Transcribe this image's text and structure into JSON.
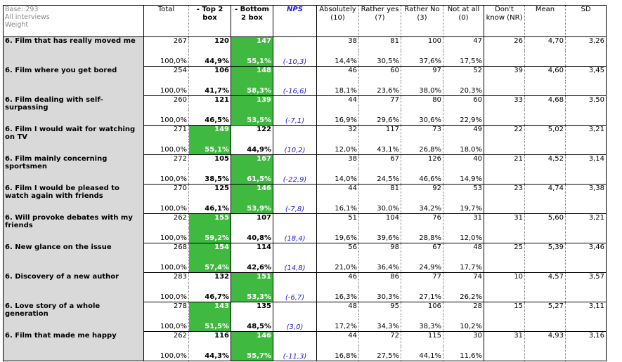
{
  "base_info": [
    "Base: 293",
    "All interviews",
    "Weight"
  ],
  "columns": [
    "Total",
    "- Top 2 box",
    "- Bottom 2 box",
    "NPS",
    "Absolutely (10)",
    "Rather yes (7)",
    "Rather No (3)",
    "Not at all (0)",
    "Don't know (NR)",
    "Mean",
    "SD"
  ],
  "rows": [
    {
      "label": "6. Film that has really moved me",
      "total": "267",
      "top2": "120",
      "bottom2": "147",
      "abs": "38",
      "yes": "81",
      "no": "100",
      "notatall": "47",
      "nr": "26",
      "mean": "4,70",
      "sd": "3,26",
      "total_pct": "100,0%",
      "top2_pct": "44,9%",
      "bottom2_pct": "55,1%",
      "nps": "(-10,3)",
      "abs_pct": "14,4%",
      "yes_pct": "30,5%",
      "no_pct": "37,6%",
      "notatall_pct": "17,5%",
      "green": "bottom"
    },
    {
      "label": "6. Film where you get bored",
      "total": "254",
      "top2": "106",
      "bottom2": "148",
      "abs": "46",
      "yes": "60",
      "no": "97",
      "notatall": "52",
      "nr": "39",
      "mean": "4,60",
      "sd": "3,45",
      "total_pct": "100,0%",
      "top2_pct": "41,7%",
      "bottom2_pct": "58,3%",
      "nps": "(-16,6)",
      "abs_pct": "18,1%",
      "yes_pct": "23,6%",
      "no_pct": "38,0%",
      "notatall_pct": "20,3%",
      "green": "bottom"
    },
    {
      "label": "6. Film dealing with self-surpassing",
      "total": "260",
      "top2": "121",
      "bottom2": "139",
      "abs": "44",
      "yes": "77",
      "no": "80",
      "notatall": "60",
      "nr": "33",
      "mean": "4,68",
      "sd": "3,50",
      "total_pct": "100,0%",
      "top2_pct": "46,5%",
      "bottom2_pct": "53,5%",
      "nps": "(-7,1)",
      "abs_pct": "16,9%",
      "yes_pct": "29,6%",
      "no_pct": "30,6%",
      "notatall_pct": "22,9%",
      "green": "bottom"
    },
    {
      "label": "6. Film I would wait for watching on TV",
      "total": "271",
      "top2": "149",
      "bottom2": "122",
      "abs": "32",
      "yes": "117",
      "no": "73",
      "notatall": "49",
      "nr": "22",
      "mean": "5,02",
      "sd": "3,21",
      "total_pct": "100,0%",
      "top2_pct": "55,1%",
      "bottom2_pct": "44,9%",
      "nps": "(10,2)",
      "abs_pct": "12,0%",
      "yes_pct": "43,1%",
      "no_pct": "26,8%",
      "notatall_pct": "18,0%",
      "green": "top"
    },
    {
      "label": "6. Film mainly concerning sportsmen",
      "total": "272",
      "top2": "105",
      "bottom2": "167",
      "abs": "38",
      "yes": "67",
      "no": "126",
      "notatall": "40",
      "nr": "21",
      "mean": "4,52",
      "sd": "3,14",
      "total_pct": "100,0%",
      "top2_pct": "38,5%",
      "bottom2_pct": "61,5%",
      "nps": "(-22,9)",
      "abs_pct": "14,0%",
      "yes_pct": "24,5%",
      "no_pct": "46,6%",
      "notatall_pct": "14,9%",
      "green": "bottom"
    },
    {
      "label": "6. Film I would be pleased to watch again with friends",
      "total": "270",
      "top2": "125",
      "bottom2": "146",
      "abs": "44",
      "yes": "81",
      "no": "92",
      "notatall": "53",
      "nr": "23",
      "mean": "4,74",
      "sd": "3,38",
      "total_pct": "100,0%",
      "top2_pct": "46,1%",
      "bottom2_pct": "53,9%",
      "nps": "(-7,8)",
      "abs_pct": "16,1%",
      "yes_pct": "30,0%",
      "no_pct": "34,2%",
      "notatall_pct": "19,7%",
      "green": "bottom"
    },
    {
      "label": "6. Will provoke debates with my friends",
      "total": "262",
      "top2": "155",
      "bottom2": "107",
      "abs": "51",
      "yes": "104",
      "no": "76",
      "notatall": "31",
      "nr": "31",
      "mean": "5,60",
      "sd": "3,21",
      "total_pct": "100,0%",
      "top2_pct": "59,2%",
      "bottom2_pct": "40,8%",
      "nps": "(18,4)",
      "abs_pct": "19,6%",
      "yes_pct": "39,6%",
      "no_pct": "28,8%",
      "notatall_pct": "12,0%",
      "green": "top"
    },
    {
      "label": "6. New glance on the issue",
      "total": "268",
      "top2": "154",
      "bottom2": "114",
      "abs": "56",
      "yes": "98",
      "no": "67",
      "notatall": "48",
      "nr": "25",
      "mean": "5,39",
      "sd": "3,46",
      "total_pct": "100,0%",
      "top2_pct": "57,4%",
      "bottom2_pct": "42,6%",
      "nps": "(14,8)",
      "abs_pct": "21,0%",
      "yes_pct": "36,4%",
      "no_pct": "24,9%",
      "notatall_pct": "17,7%",
      "green": "top"
    },
    {
      "label": "6. Discovery of a new author",
      "total": "283",
      "top2": "132",
      "bottom2": "151",
      "abs": "46",
      "yes": "86",
      "no": "77",
      "notatall": "74",
      "nr": "10",
      "mean": "4,57",
      "sd": "3,57",
      "total_pct": "100,0%",
      "top2_pct": "46,7%",
      "bottom2_pct": "53,3%",
      "nps": "(-6,7)",
      "abs_pct": "16,3%",
      "yes_pct": "30,3%",
      "no_pct": "27,1%",
      "notatall_pct": "26,2%",
      "green": "bottom"
    },
    {
      "label": "6. Love story of a whole generation",
      "total": "278",
      "top2": "143",
      "bottom2": "135",
      "abs": "48",
      "yes": "95",
      "no": "106",
      "notatall": "28",
      "nr": "15",
      "mean": "5,27",
      "sd": "3,11",
      "total_pct": "100,0%",
      "top2_pct": "51,5%",
      "bottom2_pct": "48,5%",
      "nps": "(3,0)",
      "abs_pct": "17,2%",
      "yes_pct": "34,3%",
      "no_pct": "38,3%",
      "notatall_pct": "10,2%",
      "green": "top"
    },
    {
      "label": "6. Film that made me happy",
      "total": "262",
      "top2": "116",
      "bottom2": "146",
      "abs": "44",
      "yes": "72",
      "no": "115",
      "notatall": "30",
      "nr": "31",
      "mean": "4,93",
      "sd": "3,16",
      "total_pct": "100,0%",
      "top2_pct": "44,3%",
      "bottom2_pct": "55,7%",
      "nps": "(-11,3)",
      "abs_pct": "16,8%",
      "yes_pct": "27,5%",
      "no_pct": "44,1%",
      "notatall_pct": "11,6%",
      "green": "bottom"
    }
  ],
  "colors": {
    "highlight": "#3fb93f",
    "nps_text": "#1a1adb",
    "label_bg": "#d9d9d9"
  }
}
